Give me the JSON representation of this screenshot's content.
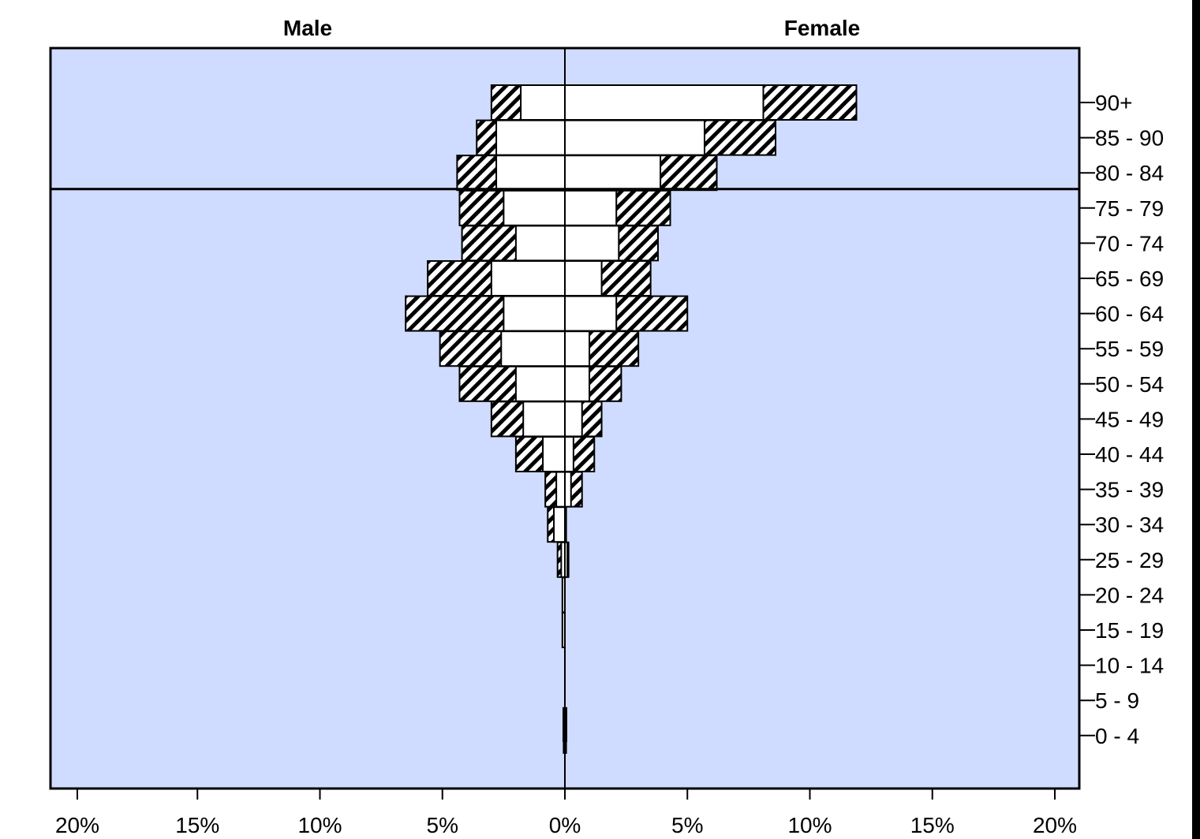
{
  "chart_data": {
    "type": "bar",
    "orientation": "horizontal",
    "layout": "population-pyramid",
    "left_group": "Male",
    "right_group": "Female",
    "categories": [
      "90+",
      "85 - 90",
      "80 - 84",
      "75 - 79",
      "70 - 74",
      "65 - 69",
      "60 - 64",
      "55 - 59",
      "50 - 54",
      "45 - 49",
      "40 - 44",
      "35 - 39",
      "30 - 34",
      "25 - 29",
      "20 - 24",
      "15 - 19",
      "10 - 14",
      "5 - 9",
      "0 - 4"
    ],
    "male_inner": [
      1.8,
      2.8,
      2.8,
      2.5,
      2.0,
      3.0,
      2.5,
      2.6,
      2.0,
      1.7,
      0.9,
      0.35,
      0.45,
      0.15,
      0.1,
      0.1,
      0,
      0,
      0.05
    ],
    "male_total": [
      3.0,
      3.6,
      4.4,
      4.3,
      4.2,
      5.6,
      6.5,
      5.1,
      4.3,
      3.0,
      2.0,
      0.8,
      0.7,
      0.3,
      0.1,
      0.1,
      0,
      0,
      0.05
    ],
    "female_inner": [
      8.1,
      5.7,
      3.9,
      2.1,
      2.2,
      1.5,
      2.1,
      1.0,
      1.0,
      0.7,
      0.35,
      0.25,
      0.05,
      0.1,
      0,
      0,
      0,
      0,
      0.05
    ],
    "female_total": [
      11.9,
      8.6,
      6.2,
      4.3,
      3.8,
      3.5,
      5.0,
      3.0,
      2.3,
      1.5,
      1.2,
      0.7,
      0.05,
      0.15,
      0,
      0,
      0,
      0,
      0.05
    ],
    "x_ticks": [
      "20%",
      "15%",
      "10%",
      "5%",
      "0%",
      "5%",
      "10%",
      "15%",
      "20%"
    ],
    "x_tick_values": [
      -20,
      -15,
      -10,
      -5,
      0,
      5,
      10,
      15,
      20
    ],
    "xlim": [
      -21,
      21
    ],
    "reference_line_between": [
      "80 - 84",
      "75 - 79"
    ],
    "grid": false,
    "colors": {
      "plot_background": "#cfdcff",
      "inner_bar_fill": "#ffffff",
      "outer_bar_hatch": "#000000",
      "axis": "#000000"
    }
  }
}
